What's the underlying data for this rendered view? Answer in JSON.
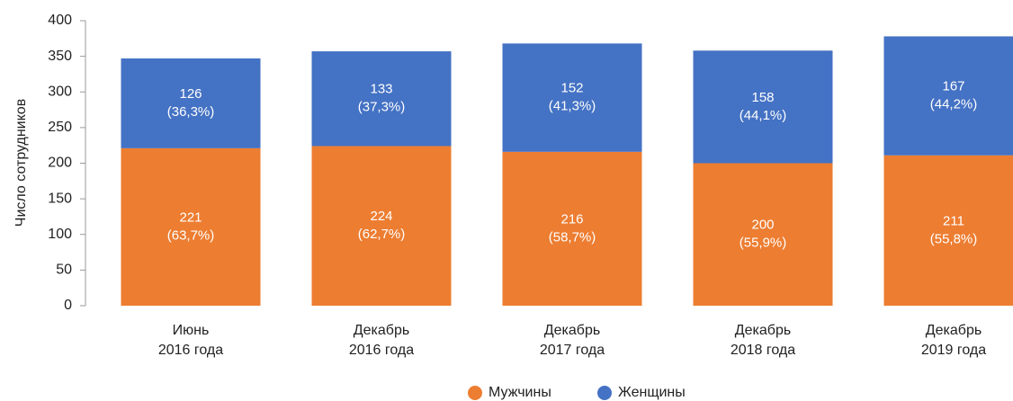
{
  "chart_data": {
    "type": "stacked_bar",
    "ylabel": "Число сотрудников",
    "categories": [
      [
        "Июнь",
        "2016 года"
      ],
      [
        "Декабрь",
        "2016 года"
      ],
      [
        "Декабрь",
        "2017 года"
      ],
      [
        "Декабрь",
        "2018 года"
      ],
      [
        "Декабрь",
        "2019 года"
      ]
    ],
    "series": [
      {
        "name": "Мужчины",
        "color": "#ed7d31",
        "values": [
          221,
          224,
          216,
          200,
          211
        ],
        "percent_labels": [
          "(63,7%)",
          "(62,7%)",
          "(58,7%)",
          "(55,9%)",
          "(55,8%)"
        ]
      },
      {
        "name": "Женщины",
        "color": "#4472c4",
        "values": [
          126,
          133,
          152,
          158,
          167
        ],
        "percent_labels": [
          "(36,3%)",
          "(37,3%)",
          "(41,3%)",
          "(44,1%)",
          "(44,2%)"
        ]
      }
    ],
    "ylim": [
      0,
      400
    ],
    "yticks": [
      0,
      50,
      100,
      150,
      200,
      250,
      300,
      350,
      400
    ],
    "legend": "bottom"
  }
}
